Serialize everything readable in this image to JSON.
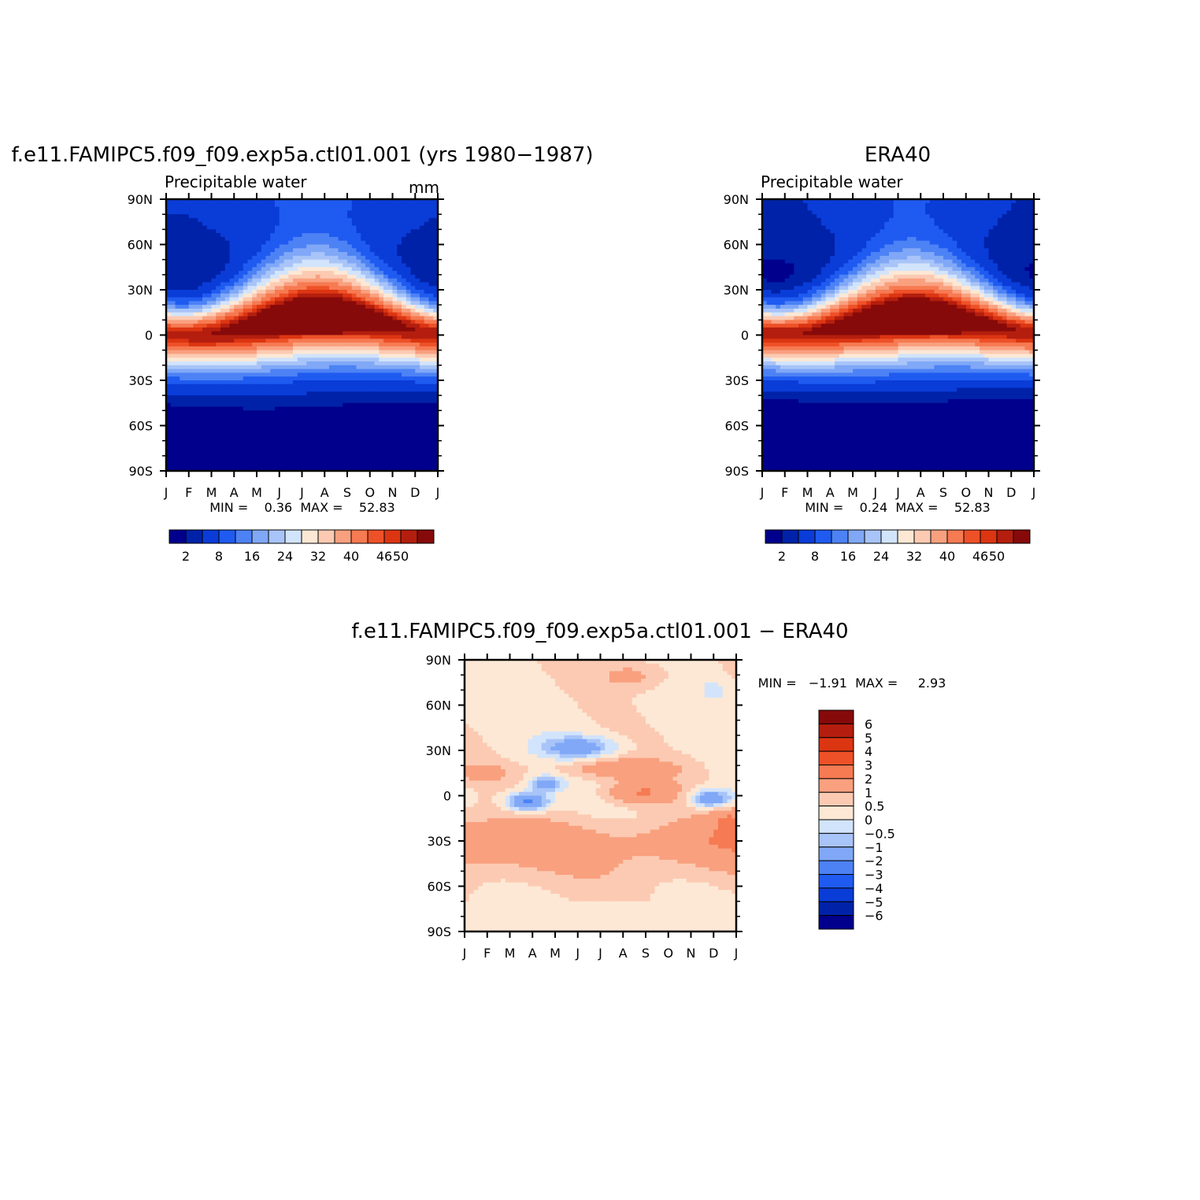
{
  "colors": {
    "abs_scale": [
      "#00008C",
      "#0022A8",
      "#0A3CD8",
      "#1F5BF0",
      "#4D82F5",
      "#80A8F7",
      "#A8C4F8",
      "#D2E4FB",
      "#FCE8D5",
      "#FCCAB2",
      "#F9A07F",
      "#F67A52",
      "#EE5128",
      "#DC3512",
      "#B41E0E",
      "#870A0A"
    ],
    "diff_scale": [
      "#00008C",
      "#0022A8",
      "#0A3CD8",
      "#1F5BF0",
      "#4D82F5",
      "#80A8F7",
      "#A8C4F8",
      "#D2E4FB",
      "#FCE8D5",
      "#FCCAB2",
      "#F9A07F",
      "#F67A52",
      "#EE5128",
      "#DC3512",
      "#B41E0E",
      "#870A0A"
    ]
  },
  "chart_data": [
    {
      "id": "model",
      "type": "heatmap",
      "title": "f.e11.FAMIPC5.f09_f09.exp5a.ctl01.001 (yrs 1980−1987)",
      "subtitle_left": "Precipitable water",
      "subtitle_right": "mm",
      "x_labels": [
        "J",
        "F",
        "M",
        "A",
        "M",
        "J",
        "J",
        "A",
        "S",
        "O",
        "N",
        "D",
        "J"
      ],
      "y_labels": [
        "90N",
        "60N",
        "30N",
        "0",
        "30S",
        "60S",
        "90S"
      ],
      "xlim": [
        0,
        12
      ],
      "ylim": [
        -90,
        90
      ],
      "stats": "MIN =    0.36  MAX =    52.83",
      "colorbar_labels": [
        "2",
        "8",
        "16",
        "24",
        "32",
        "40",
        "46",
        "50"
      ],
      "colorbar_levels": [
        2,
        4,
        8,
        12,
        16,
        20,
        24,
        28,
        32,
        36,
        40,
        44,
        46,
        48,
        50
      ],
      "field": {
        "max": 52.0,
        "itcz_lat": 6,
        "itcz_amp": 6,
        "peak_shift": 0.3,
        "width": 17,
        "polar_south": 2,
        "polar_north": 5,
        "north_season": 8
      }
    },
    {
      "id": "obs",
      "type": "heatmap",
      "title": "ERA40",
      "subtitle_left": "Precipitable water",
      "x_labels": [
        "J",
        "F",
        "M",
        "A",
        "M",
        "J",
        "J",
        "A",
        "S",
        "O",
        "N",
        "D",
        "J"
      ],
      "y_labels": [
        "90N",
        "60N",
        "30N",
        "0",
        "30S",
        "60S",
        "90S"
      ],
      "xlim": [
        0,
        12
      ],
      "ylim": [
        -90,
        90
      ],
      "stats": "MIN =    0.24  MAX =    52.83",
      "colorbar_labels": [
        "2",
        "8",
        "16",
        "24",
        "32",
        "40",
        "46",
        "50"
      ],
      "colorbar_levels": [
        2,
        4,
        8,
        12,
        16,
        20,
        24,
        28,
        32,
        36,
        40,
        44,
        46,
        48,
        50
      ],
      "field": {
        "max": 52.2,
        "itcz_lat": 6,
        "itcz_amp": 5,
        "peak_shift": 0.2,
        "width": 16.5,
        "polar_south": 1.5,
        "polar_north": 4,
        "north_season": 8
      }
    },
    {
      "id": "diff",
      "type": "heatmap",
      "title": "f.e11.FAMIPC5.f09_f09.exp5a.ctl01.001 − ERA40",
      "x_labels": [
        "J",
        "F",
        "M",
        "A",
        "M",
        "J",
        "J",
        "A",
        "S",
        "O",
        "N",
        "D",
        "J"
      ],
      "y_labels": [
        "90N",
        "60N",
        "30N",
        "0",
        "30S",
        "60S",
        "90S"
      ],
      "xlim": [
        0,
        12
      ],
      "ylim": [
        -90,
        90
      ],
      "stats": "MIN =   −1.91  MAX =     2.93",
      "colorbar_labels": [
        "6",
        "5",
        "4",
        "3",
        "2",
        "1",
        "0.5",
        "0",
        "−0.5",
        "−1",
        "−2",
        "−3",
        "−4",
        "−5",
        "−6"
      ],
      "colorbar_levels": [
        -6,
        -5,
        -4,
        -3,
        -2,
        -1,
        -0.5,
        0,
        0.5,
        1,
        2,
        3,
        4,
        5,
        6
      ]
    }
  ]
}
